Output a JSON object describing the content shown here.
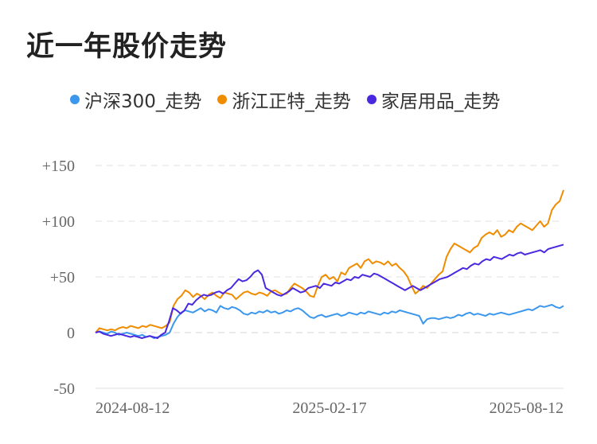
{
  "chart_data": {
    "type": "line",
    "title": "近一年股价走势",
    "ylim": [
      -50,
      150
    ],
    "y_ticks": [
      "+150",
      "+100",
      "+50",
      "0",
      "-50"
    ],
    "y_tick_values": [
      150,
      100,
      50,
      0,
      -50
    ],
    "x_ticks": [
      "2024-08-12",
      "2025-02-17",
      "2025-08-12"
    ],
    "grid": true,
    "legend_position": "top",
    "series": [
      {
        "name": "沪深300_走势",
        "color": "#3b97ee",
        "values": [
          0,
          1,
          0,
          -1,
          1,
          0,
          -2,
          -1,
          0,
          -1,
          -2,
          -3,
          -2,
          -4,
          -3,
          -5,
          -4,
          -3,
          -2,
          0,
          8,
          14,
          18,
          20,
          19,
          18,
          20,
          22,
          19,
          21,
          20,
          18,
          24,
          22,
          21,
          23,
          22,
          20,
          17,
          16,
          18,
          17,
          19,
          18,
          20,
          18,
          19,
          17,
          18,
          20,
          19,
          21,
          22,
          20,
          17,
          14,
          13,
          15,
          16,
          14,
          15,
          16,
          17,
          15,
          16,
          18,
          17,
          16,
          18,
          17,
          19,
          18,
          17,
          16,
          18,
          17,
          19,
          18,
          20,
          19,
          18,
          17,
          16,
          15,
          8,
          12,
          13,
          13,
          12,
          13,
          14,
          13,
          14,
          16,
          15,
          17,
          18,
          16,
          17,
          16,
          15,
          17,
          16,
          17,
          18,
          17,
          16,
          17,
          18,
          19,
          20,
          21,
          20,
          22,
          24,
          23,
          24,
          25,
          23,
          22,
          24
        ]
      },
      {
        "name": "浙江正特_走势",
        "color": "#f08c00",
        "values": [
          0,
          4,
          3,
          2,
          3,
          2,
          4,
          5,
          4,
          6,
          5,
          4,
          6,
          5,
          7,
          6,
          5,
          4,
          6,
          9,
          24,
          30,
          33,
          38,
          36,
          32,
          35,
          33,
          30,
          34,
          36,
          33,
          31,
          36,
          35,
          34,
          30,
          33,
          36,
          37,
          35,
          34,
          36,
          35,
          33,
          37,
          38,
          36,
          34,
          35,
          40,
          44,
          42,
          40,
          37,
          33,
          32,
          42,
          50,
          52,
          48,
          50,
          46,
          54,
          52,
          58,
          60,
          62,
          58,
          64,
          66,
          62,
          64,
          63,
          61,
          64,
          60,
          62,
          58,
          55,
          50,
          42,
          35,
          38,
          42,
          40,
          44,
          48,
          52,
          55,
          68,
          75,
          80,
          78,
          76,
          74,
          72,
          76,
          78,
          85,
          88,
          90,
          88,
          92,
          86,
          88,
          92,
          90,
          95,
          98,
          96,
          94,
          92,
          96,
          100,
          95,
          98,
          110,
          115,
          118,
          128
        ]
      },
      {
        "name": "家居用品_走势",
        "color": "#4a28e0",
        "values": [
          0,
          1,
          -1,
          -2,
          -3,
          -2,
          -1,
          -2,
          -3,
          -4,
          -3,
          -4,
          -5,
          -4,
          -3,
          -4,
          -5,
          -2,
          0,
          10,
          22,
          20,
          17,
          20,
          26,
          25,
          29,
          32,
          34,
          33,
          34,
          36,
          37,
          35,
          38,
          40,
          44,
          48,
          46,
          47,
          50,
          54,
          56,
          52,
          40,
          38,
          36,
          34,
          33,
          35,
          37,
          40,
          38,
          36,
          37,
          40,
          41,
          42,
          40,
          44,
          43,
          42,
          45,
          44,
          46,
          48,
          47,
          50,
          49,
          52,
          51,
          50,
          53,
          52,
          50,
          48,
          46,
          44,
          42,
          40,
          38,
          40,
          42,
          40,
          38,
          40,
          42,
          44,
          46,
          48,
          49,
          50,
          52,
          54,
          56,
          58,
          57,
          60,
          62,
          61,
          64,
          66,
          65,
          68,
          67,
          66,
          68,
          70,
          69,
          71,
          72,
          70,
          71,
          72,
          73,
          74,
          72,
          75,
          76,
          77,
          78,
          79
        ]
      }
    ]
  }
}
